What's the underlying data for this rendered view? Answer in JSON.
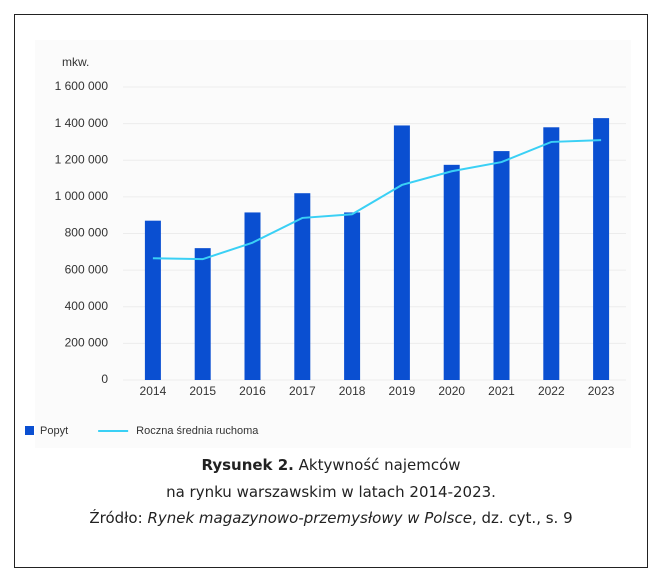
{
  "chart_data": {
    "type": "bar",
    "y_unit": "mkw.",
    "categories": [
      "2014",
      "2015",
      "2016",
      "2017",
      "2018",
      "2019",
      "2020",
      "2021",
      "2022",
      "2023"
    ],
    "series": [
      {
        "name": "Popyt",
        "type": "bar",
        "color": "#0a4fd1",
        "values": [
          870000,
          720000,
          915000,
          1020000,
          915000,
          1390000,
          1175000,
          1250000,
          1380000,
          1430000
        ]
      },
      {
        "name": "Roczna średnia ruchoma",
        "type": "line",
        "color": "#3ad0f5",
        "values": [
          665000,
          660000,
          750000,
          885000,
          905000,
          1065000,
          1140000,
          1190000,
          1300000,
          1310000
        ]
      }
    ],
    "ylim": [
      0,
      1600000
    ],
    "yticks": [
      0,
      {
        "value": 200000,
        "label": "200 000"
      },
      {
        "value": 400000,
        "label": "400 000"
      },
      {
        "value": 600000,
        "label": "600 000"
      },
      {
        "value": 800000,
        "label": "800 000"
      },
      {
        "value": 1000000,
        "label": "1 000 000"
      },
      {
        "value": 1200000,
        "label": "1 200 000"
      },
      {
        "value": 1400000,
        "label": "1 400 000"
      },
      {
        "value": 1600000,
        "label": "1 600 000"
      }
    ],
    "grid": true,
    "legend": "bottom-left"
  },
  "caption": {
    "label": "Rysunek 2.",
    "title_line1": " Aktywność najemców",
    "title_line2": "na rynku warszawskim w latach 2014-2023.",
    "source_prefix": "Źródło: ",
    "source_title": "Rynek magazynowo-przemysłowy w Polsce",
    "source_suffix": ", dz. cyt., s. 9"
  }
}
